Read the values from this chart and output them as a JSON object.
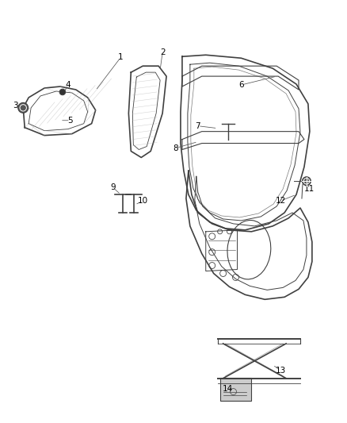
{
  "background_color": "#ffffff",
  "line_color": "#404040",
  "label_color": "#000000",
  "figsize": [
    4.38,
    5.33
  ],
  "dpi": 100
}
